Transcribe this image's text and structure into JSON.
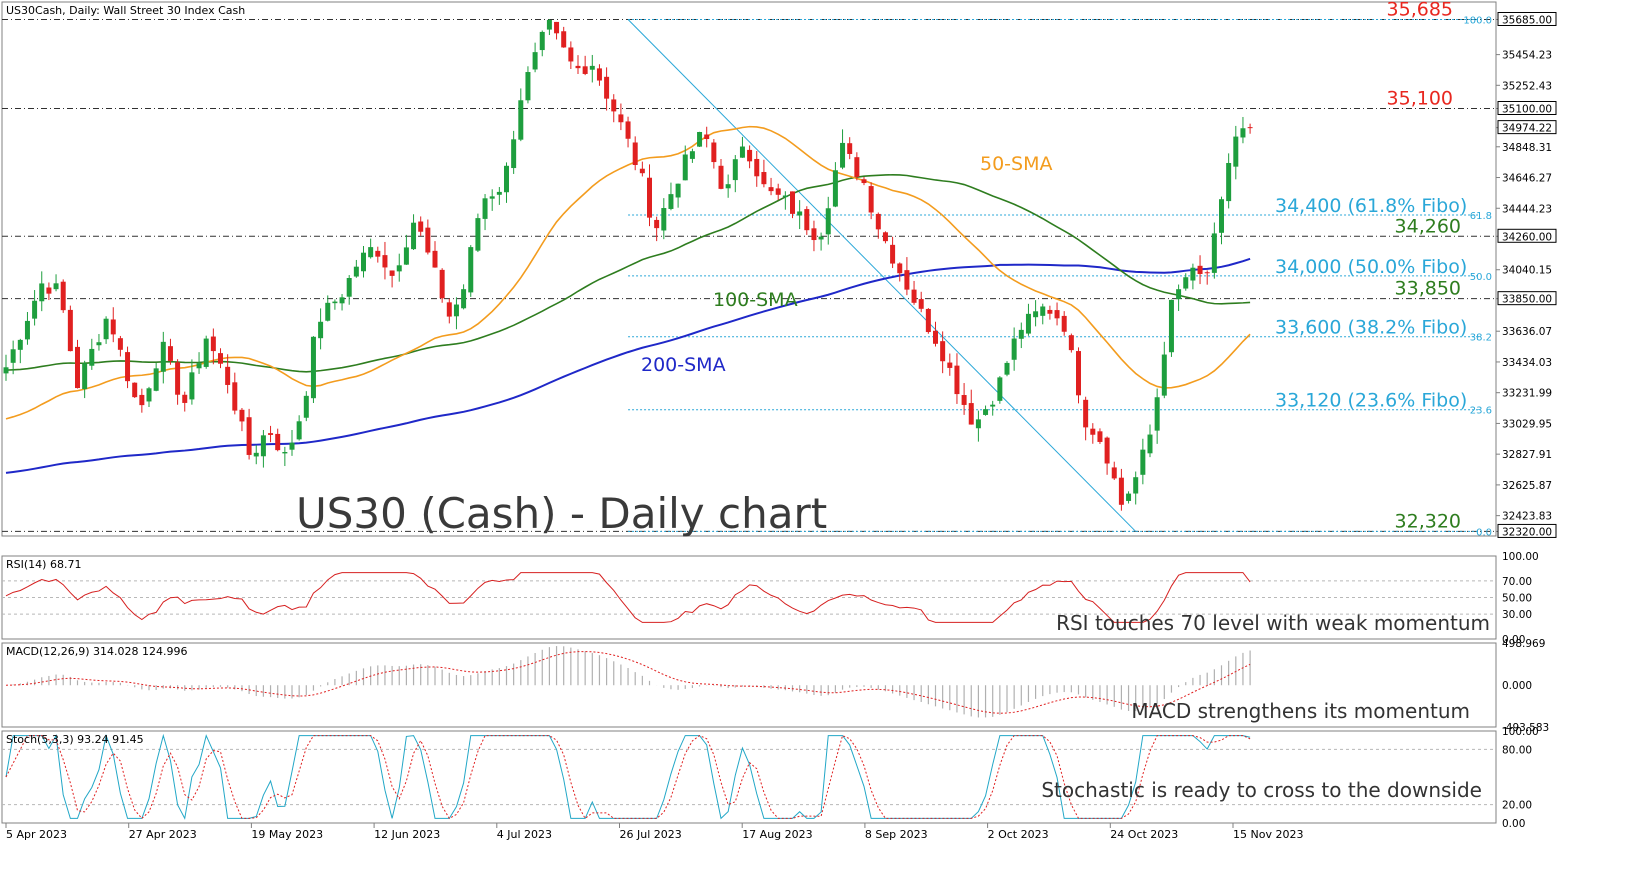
{
  "header": {
    "symbol_line": "US30Cash, Daily:  Wall Street 30 Index Cash"
  },
  "watermark": "US30 (Cash) - Daily chart",
  "colors": {
    "up": "#1e9e3e",
    "down": "#e02020",
    "sma50": "#f39c1e",
    "sma100": "#2e7d1f",
    "sma200": "#1f28c8",
    "fibo": "#2aa7d8",
    "resistance_label": "#e8271f",
    "support_label": "#2e7d1f",
    "rsi": "#d62020",
    "macd_hist": "#b0b0b0",
    "macd_signal": "#e02020",
    "stoch_main": "#22a7c7",
    "stoch_signal": "#e02020"
  },
  "chart_data": [
    {
      "type": "candlestick",
      "title": "US30Cash, Daily:  Wall Street 30 Index Cash",
      "x_tick_labels": [
        "5 Apr 2023",
        "27 Apr 2023",
        "19 May 2023",
        "12 Jun 2023",
        "4 Jul 2023",
        "26 Jul 2023",
        "17 Aug 2023",
        "8 Sep 2023",
        "2 Oct 2023",
        "24 Oct 2023",
        "15 Nov 2023"
      ],
      "y_tick_labels": [
        "35685.00",
        "35454.23",
        "35252.43",
        "35100.00",
        "34974.22",
        "34848.31",
        "34646.27",
        "34444.23",
        "34260.00",
        "34040.15",
        "33850.00",
        "33636.07",
        "33434.03",
        "33231.99",
        "33029.95",
        "32827.91",
        "32625.87",
        "32423.83",
        "32320.00"
      ],
      "ylim": [
        32290,
        35800
      ],
      "current_price": 34974.22,
      "horizontal_levels": [
        {
          "label": "35,685",
          "value": 35685
        },
        {
          "label": "35,100",
          "value": 35100
        },
        {
          "label": "34,260",
          "value": 34260
        },
        {
          "label": "33,850",
          "value": 33850
        },
        {
          "label": "32,320",
          "value": 32320
        }
      ],
      "fibonacci": [
        {
          "label": "34,400 (61.8% Fibo)",
          "value": 34400,
          "ratio": "61.8"
        },
        {
          "label": "34,000 (50.0% Fibo)",
          "value": 34000,
          "ratio": "50.0"
        },
        {
          "label": "33,600 (38.2% Fibo)",
          "value": 33600,
          "ratio": "38.2"
        },
        {
          "label": "33,120 (23.6% Fibo)",
          "value": 33120,
          "ratio": "23.6"
        },
        {
          "label": "",
          "value": 35685,
          "ratio": "100.0"
        },
        {
          "label": "",
          "value": 32320,
          "ratio": "0.0"
        }
      ],
      "moving_average_labels": {
        "sma50": "50-SMA",
        "sma100": "100-SMA",
        "sma200": "200-SMA"
      },
      "trendline": {
        "from_price": 35685,
        "to_price": 32320
      }
    },
    {
      "type": "line",
      "title": "RSI(14) 68.71",
      "y_tick_labels": [
        "100.00",
        "70.00",
        "50.00",
        "30.00",
        "0.00"
      ],
      "ylim": [
        0,
        100
      ],
      "levels": [
        70,
        50,
        30
      ],
      "annotation": "RSI touches 70 level with weak momentum"
    },
    {
      "type": "bar",
      "title": "MACD(12,26,9) 314.028 124.996",
      "y_tick_labels": [
        "498.969",
        "0.000",
        "-493.583"
      ],
      "ylim": [
        -493.583,
        498.969
      ],
      "annotation": "MACD strengthens its momentum"
    },
    {
      "type": "line",
      "title": "Stoch(5,3,3) 93.24 91.45",
      "y_tick_labels": [
        "100.00",
        "80.00",
        "20.00",
        "0.00"
      ],
      "ylim": [
        0,
        100
      ],
      "levels": [
        80,
        20
      ],
      "annotation": "Stochastic is ready to cross to the downside"
    }
  ]
}
